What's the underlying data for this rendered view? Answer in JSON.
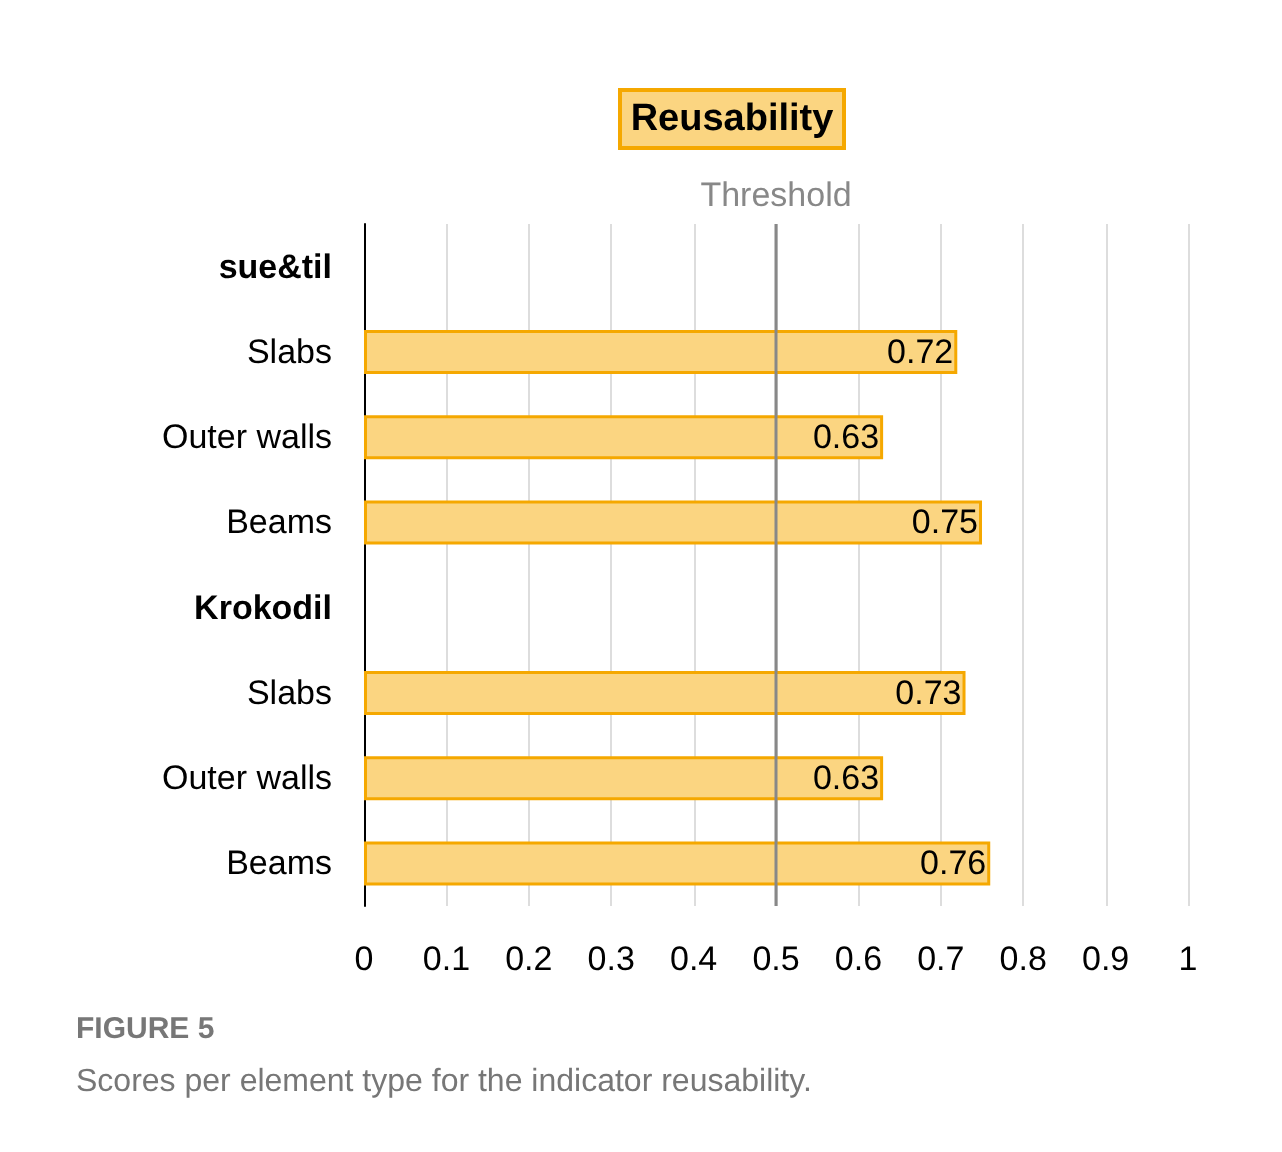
{
  "chart_data": {
    "type": "bar",
    "orientation": "horizontal",
    "title": "Reusability",
    "categories": [
      "sue&til",
      "Slabs",
      "Outer walls",
      "Beams",
      "Krokodil",
      "Slabs",
      "Outer walls",
      "Beams"
    ],
    "values": [
      null,
      0.72,
      0.63,
      0.75,
      null,
      0.73,
      0.63,
      0.76
    ],
    "color": "#fbd581",
    "xlim": [
      0,
      1
    ],
    "xticks": [
      0,
      0.1,
      0.2,
      0.3,
      0.4,
      0.5,
      0.6,
      0.7,
      0.8,
      0.9,
      1
    ],
    "grid": "x",
    "data_labels": true,
    "ref_lines": [
      {
        "axis": "x",
        "value": 0.5,
        "label": "Threshold",
        "color": "#888888"
      }
    ],
    "annotations": [
      "FIGURE 5",
      "Scores per element type for the indicator reusability."
    ]
  }
}
